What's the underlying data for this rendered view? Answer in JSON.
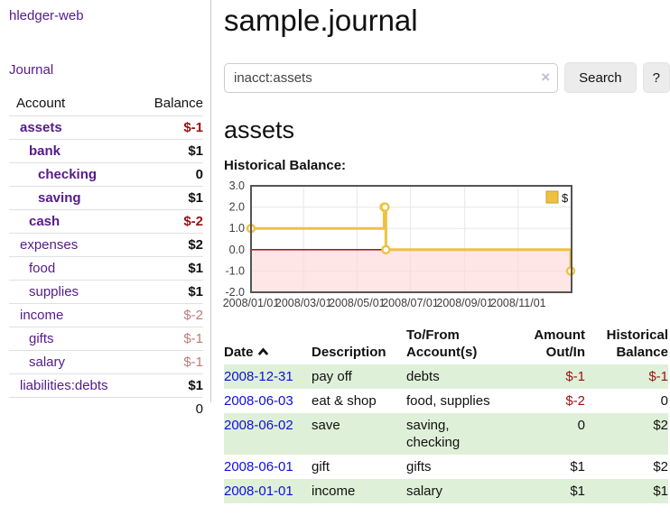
{
  "app": {
    "title": "hledger-web",
    "nav_journal": "Journal"
  },
  "sidebar": {
    "accounts_header": {
      "account": "Account",
      "balance": "Balance"
    },
    "accounts": [
      {
        "name": "assets",
        "indent": 0,
        "balance": "$-1",
        "name_bold": true,
        "amt_bold": true,
        "negative": "strong"
      },
      {
        "name": "bank",
        "indent": 1,
        "balance": "$1",
        "name_bold": true,
        "amt_bold": true
      },
      {
        "name": "checking",
        "indent": 2,
        "balance": "0",
        "name_bold": true,
        "amt_bold": true
      },
      {
        "name": "saving",
        "indent": 2,
        "balance": "$1",
        "name_bold": true,
        "amt_bold": true
      },
      {
        "name": "cash",
        "indent": 1,
        "balance": "$-2",
        "name_bold": true,
        "amt_bold": true,
        "negative": "strong"
      },
      {
        "name": "expenses",
        "indent": 0,
        "balance": "$2",
        "amt_bold": true
      },
      {
        "name": "food",
        "indent": 1,
        "balance": "$1",
        "amt_bold": true
      },
      {
        "name": "supplies",
        "indent": 1,
        "balance": "$1",
        "amt_bold": true
      },
      {
        "name": "income",
        "indent": 0,
        "balance": "$-2",
        "negative": "soft"
      },
      {
        "name": "gifts",
        "indent": 1,
        "balance": "$-1",
        "negative": "soft"
      },
      {
        "name": "salary",
        "indent": 1,
        "balance": "$-1",
        "negative": "soft",
        "link": "blue"
      },
      {
        "name": "liabilities:debts",
        "indent": 0,
        "balance": "$1",
        "amt_bold": true
      }
    ],
    "total": "0"
  },
  "main": {
    "title": "sample.journal",
    "search": {
      "value": "inacct:assets",
      "clear_glyph": "×",
      "button_label": "Search",
      "help_label": "?"
    },
    "heading": "assets",
    "chart_title": "Historical Balance:"
  },
  "chart_data": {
    "type": "line",
    "title": "Historical Balance",
    "steps": true,
    "x_start": "2008-01-01",
    "x_range_days": 366,
    "ylim": [
      -2,
      3
    ],
    "y_ticks": [
      "3.0",
      "2.0",
      "1.0",
      "0.0",
      "-1.0",
      "-2.0"
    ],
    "x_ticks": [
      {
        "label": "2008/01/01",
        "date": "2008-01-01"
      },
      {
        "label": "2008/03/01",
        "date": "2008-03-01"
      },
      {
        "label": "2008/05/01",
        "date": "2008-05-01"
      },
      {
        "label": "2008/07/01",
        "date": "2008-07-01"
      },
      {
        "label": "2008/09/01",
        "date": "2008-09-01"
      },
      {
        "label": "2008/11/01",
        "date": "2008-11-01"
      }
    ],
    "series": [
      {
        "name": "$",
        "color": "#edc240",
        "points": [
          [
            "2008-01-01",
            1
          ],
          [
            "2008-06-01",
            2
          ],
          [
            "2008-06-02",
            2
          ],
          [
            "2008-06-03",
            0
          ],
          [
            "2008-12-31",
            -1
          ]
        ]
      }
    ],
    "grid": true,
    "legend_position": "top-right",
    "negative_fill": "#ffd6d6",
    "zero_line_color": "#8b0000",
    "border_color": "#545454",
    "grid_color": "#e7e7e7",
    "tick_color": "#3d3d3d"
  },
  "register": {
    "headers": {
      "date": "Date",
      "description": "Description",
      "tofrom": "To/From Account(s)",
      "amount": "Amount Out/In",
      "balance": "Historical Balance"
    },
    "rows": [
      {
        "date": "2008-12-31",
        "description": "pay off",
        "accounts": "debts",
        "amount": "$-1",
        "amount_neg": true,
        "balance": "$-1",
        "balance_neg": true
      },
      {
        "date": "2008-06-03",
        "description": "eat & shop",
        "accounts": "food, supplies",
        "amount": "$-2",
        "amount_neg": true,
        "balance": "0"
      },
      {
        "date": "2008-06-02",
        "description": "save",
        "accounts": "saving, checking",
        "amount": "0",
        "balance": "$2"
      },
      {
        "date": "2008-06-01",
        "description": "gift",
        "accounts": "gifts",
        "amount": "$1",
        "balance": "$2"
      },
      {
        "date": "2008-01-01",
        "description": "income",
        "accounts": "salary",
        "amount": "$1",
        "balance": "$1"
      }
    ]
  }
}
